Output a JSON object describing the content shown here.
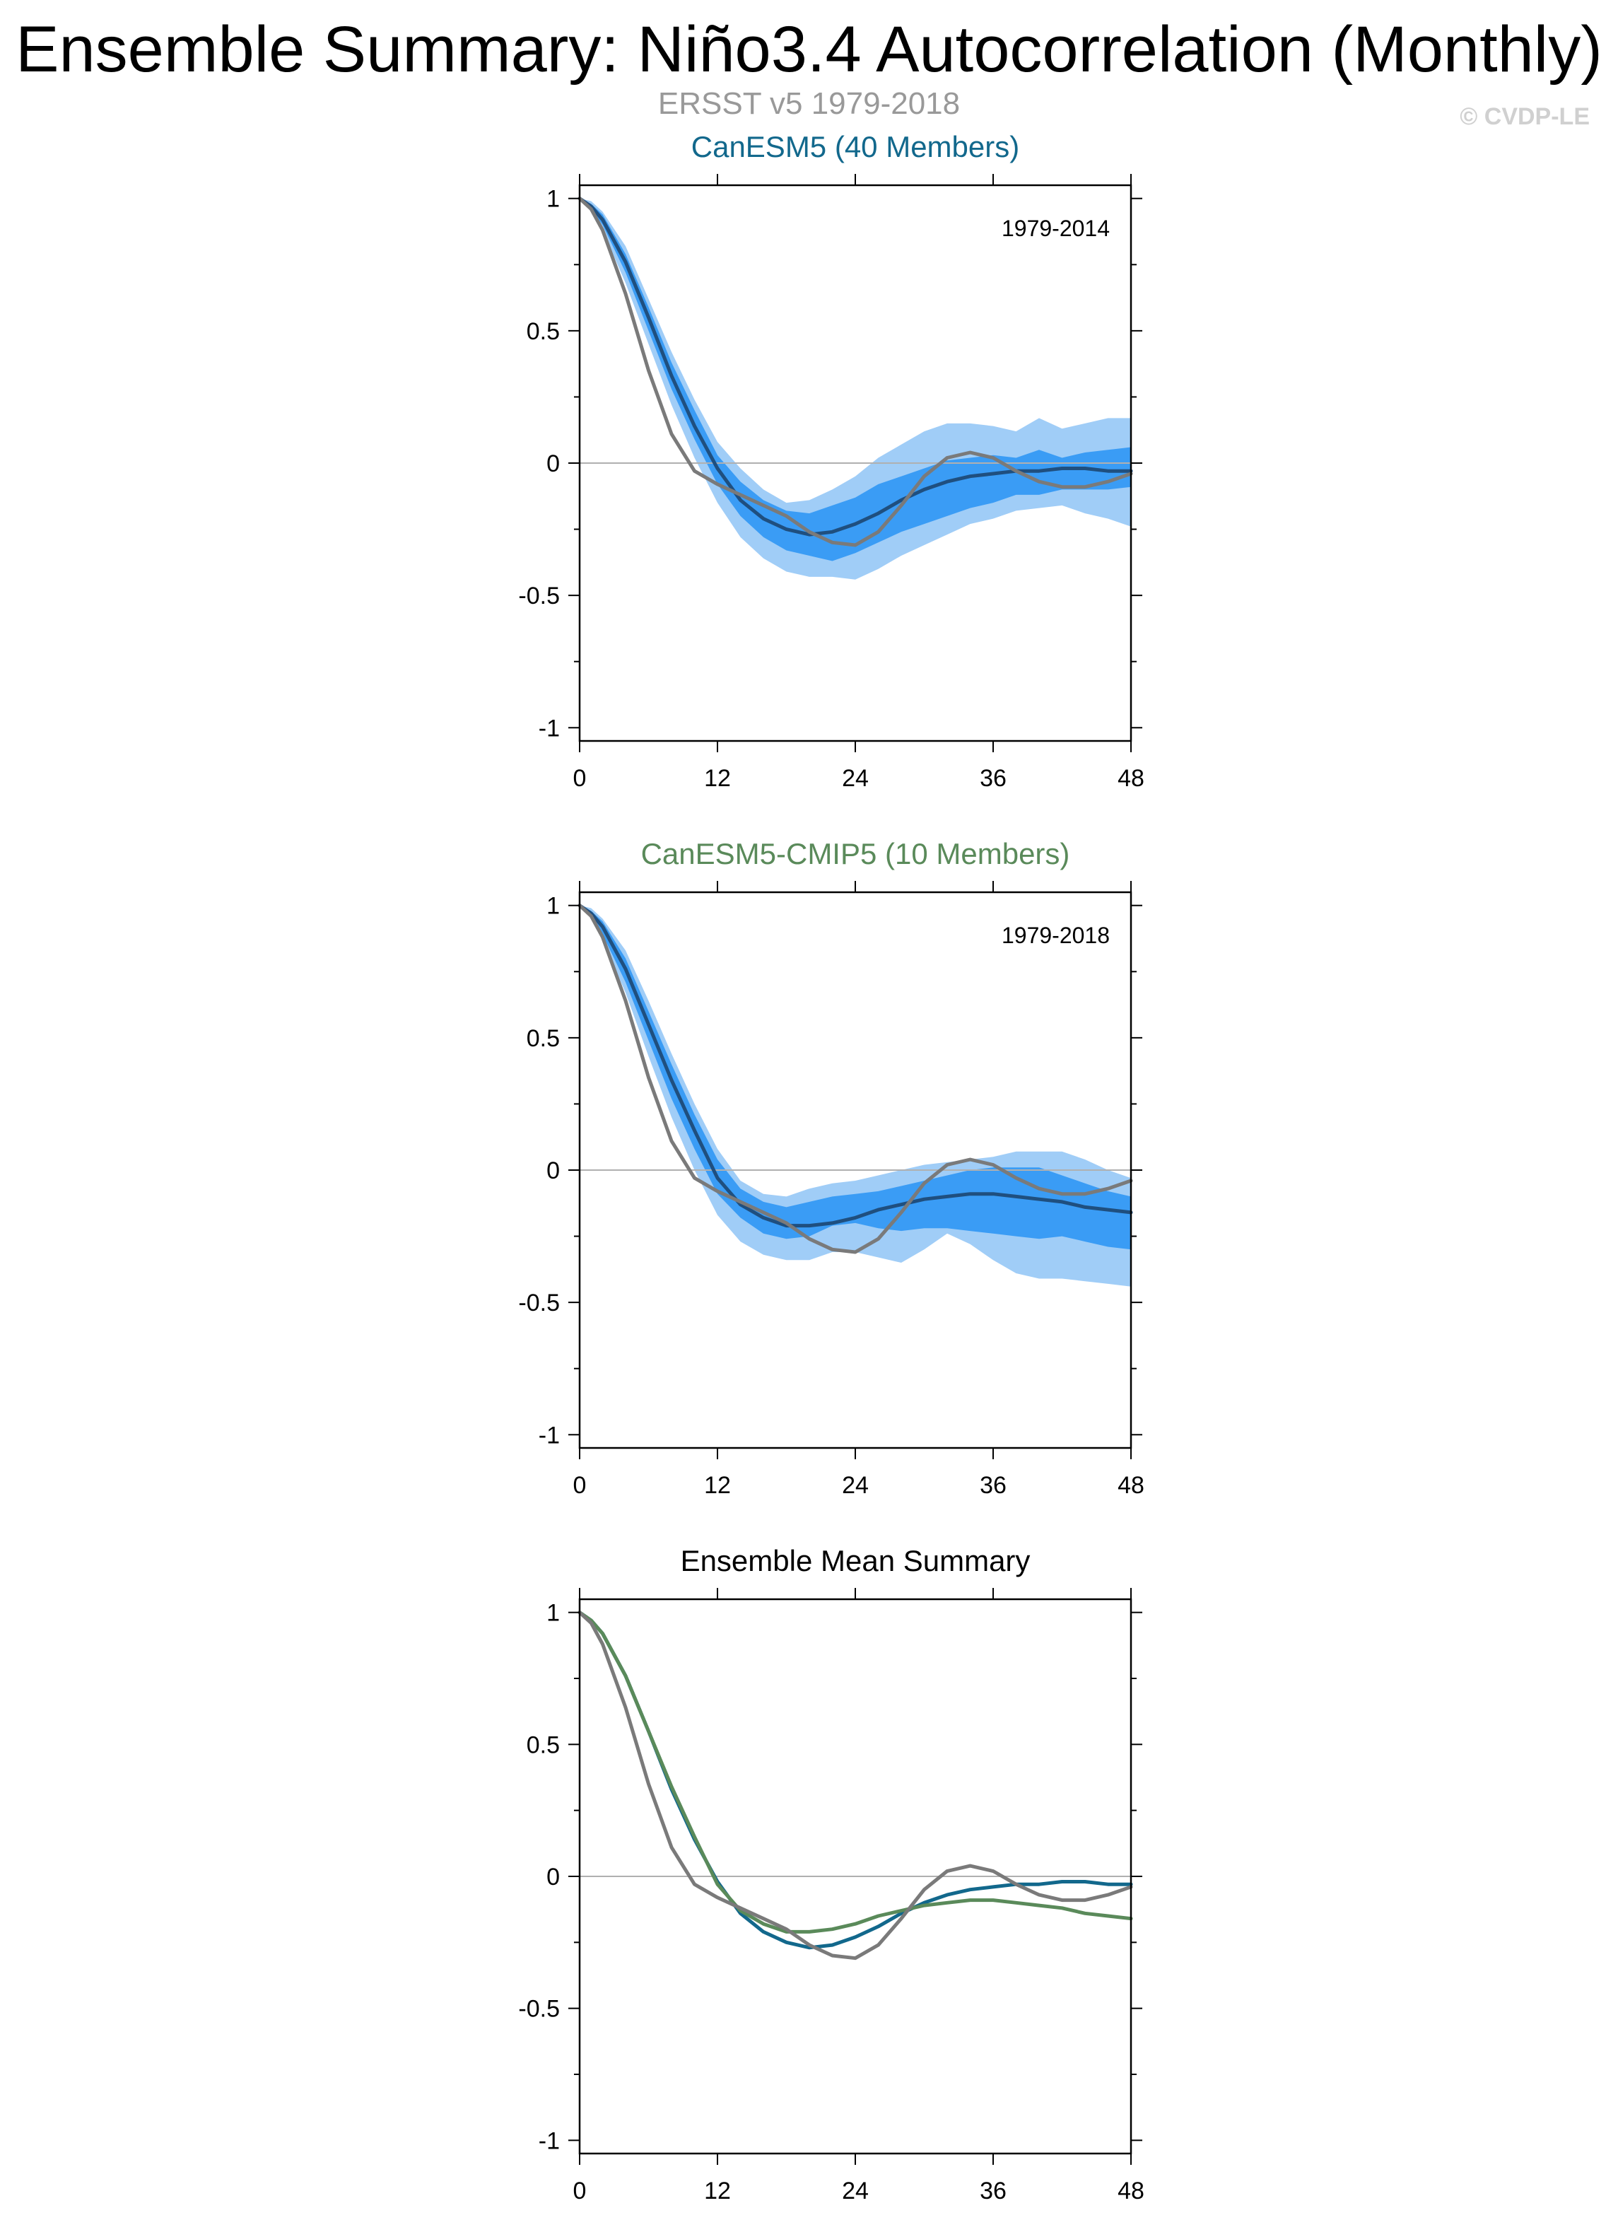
{
  "figure": {
    "title": "Ensemble Summary: Niño3.4 Autocorrelation (Monthly)",
    "subtitle": "ERSST v5 1979-2018",
    "copyright": "© CVDP-LE"
  },
  "colors": {
    "obs": "#7a7a7a",
    "band_outer": "#a0cdf7",
    "band_inner": "#3a9cf5",
    "ens_mean_line": "#1f4f7f",
    "canesm5": "#12688c",
    "canesm5_cmip5": "#5a8a5a",
    "zero_line": "#b0b0b0"
  },
  "chart_data": [
    {
      "type": "line",
      "title": "CanESM5 (40 Members)",
      "title_color": "#12688c",
      "period_label": "1979-2014",
      "x_ticks": [
        0,
        12,
        24,
        36,
        48
      ],
      "y_ticks": [
        1,
        0.5,
        0,
        -0.5,
        -1
      ],
      "y_tick_labels": [
        "1",
        "0.5",
        "0",
        "-0.5",
        "-1"
      ],
      "xlim": [
        0,
        48
      ],
      "ylim": [
        -1.05,
        1.05
      ],
      "x": [
        0,
        1,
        2,
        4,
        6,
        8,
        10,
        12,
        14,
        16,
        18,
        20,
        22,
        24,
        26,
        28,
        30,
        32,
        34,
        36,
        38,
        40,
        42,
        44,
        46,
        48
      ],
      "band_outer_upper": [
        1,
        0.99,
        0.95,
        0.82,
        0.62,
        0.42,
        0.24,
        0.08,
        -0.02,
        -0.1,
        -0.15,
        -0.14,
        -0.1,
        -0.05,
        0.02,
        0.07,
        0.12,
        0.15,
        0.15,
        0.14,
        0.12,
        0.17,
        0.13,
        0.15,
        0.17,
        0.17
      ],
      "band_inner_upper": [
        1,
        0.98,
        0.94,
        0.79,
        0.59,
        0.38,
        0.2,
        0.03,
        -0.07,
        -0.14,
        -0.18,
        -0.19,
        -0.16,
        -0.13,
        -0.08,
        -0.05,
        -0.02,
        0.01,
        0.02,
        0.03,
        0.02,
        0.05,
        0.02,
        0.04,
        0.05,
        0.06
      ],
      "band_inner_lower": [
        1,
        0.96,
        0.9,
        0.72,
        0.5,
        0.28,
        0.09,
        -0.08,
        -0.2,
        -0.28,
        -0.33,
        -0.35,
        -0.37,
        -0.34,
        -0.3,
        -0.26,
        -0.23,
        -0.2,
        -0.17,
        -0.15,
        -0.12,
        -0.12,
        -0.1,
        -0.1,
        -0.1,
        -0.09
      ],
      "band_outer_lower": [
        1,
        0.95,
        0.88,
        0.68,
        0.45,
        0.22,
        0.02,
        -0.15,
        -0.28,
        -0.36,
        -0.41,
        -0.43,
        -0.43,
        -0.44,
        -0.4,
        -0.35,
        -0.31,
        -0.27,
        -0.23,
        -0.21,
        -0.18,
        -0.17,
        -0.16,
        -0.19,
        -0.21,
        -0.24
      ],
      "series": [
        {
          "name": "Ensemble Mean",
          "color": "#1f4f7f",
          "values": [
            1,
            0.97,
            0.92,
            0.76,
            0.55,
            0.33,
            0.14,
            -0.02,
            -0.14,
            -0.21,
            -0.25,
            -0.27,
            -0.26,
            -0.23,
            -0.19,
            -0.14,
            -0.1,
            -0.07,
            -0.05,
            -0.04,
            -0.03,
            -0.03,
            -0.02,
            -0.02,
            -0.03,
            -0.03
          ]
        },
        {
          "name": "ERSST v5",
          "color": "#7a7a7a",
          "values": [
            1,
            0.96,
            0.88,
            0.64,
            0.35,
            0.11,
            -0.03,
            -0.08,
            -0.12,
            -0.16,
            -0.2,
            -0.26,
            -0.3,
            -0.31,
            -0.26,
            -0.16,
            -0.05,
            0.02,
            0.04,
            0.02,
            -0.03,
            -0.07,
            -0.09,
            -0.09,
            -0.07,
            -0.04
          ]
        }
      ]
    },
    {
      "type": "line",
      "title": "CanESM5-CMIP5 (10 Members)",
      "title_color": "#5a8a5a",
      "period_label": "1979-2018",
      "x_ticks": [
        0,
        12,
        24,
        36,
        48
      ],
      "y_ticks": [
        1,
        0.5,
        0,
        -0.5,
        -1
      ],
      "y_tick_labels": [
        "1",
        "0.5",
        "0",
        "-0.5",
        "-1"
      ],
      "xlim": [
        0,
        48
      ],
      "ylim": [
        -1.05,
        1.05
      ],
      "x": [
        0,
        1,
        2,
        4,
        6,
        8,
        10,
        12,
        14,
        16,
        18,
        20,
        22,
        24,
        26,
        28,
        30,
        32,
        34,
        36,
        38,
        40,
        42,
        44,
        46,
        48
      ],
      "band_outer_upper": [
        1,
        0.99,
        0.95,
        0.83,
        0.64,
        0.44,
        0.25,
        0.08,
        -0.04,
        -0.09,
        -0.1,
        -0.07,
        -0.05,
        -0.04,
        -0.02,
        0.0,
        0.02,
        0.03,
        0.04,
        0.05,
        0.07,
        0.07,
        0.07,
        0.04,
        0.0,
        -0.03
      ],
      "band_inner_upper": [
        1,
        0.98,
        0.94,
        0.8,
        0.6,
        0.4,
        0.21,
        0.04,
        -0.07,
        -0.12,
        -0.14,
        -0.12,
        -0.1,
        -0.09,
        -0.08,
        -0.06,
        -0.04,
        -0.02,
        0.0,
        0.01,
        0.01,
        0.01,
        -0.02,
        -0.05,
        -0.08,
        -0.1
      ],
      "band_inner_lower": [
        1,
        0.96,
        0.89,
        0.71,
        0.49,
        0.27,
        0.08,
        -0.09,
        -0.18,
        -0.24,
        -0.26,
        -0.25,
        -0.21,
        -0.2,
        -0.22,
        -0.23,
        -0.22,
        -0.22,
        -0.23,
        -0.24,
        -0.25,
        -0.26,
        -0.25,
        -0.27,
        -0.29,
        -0.3
      ],
      "band_outer_lower": [
        1,
        0.95,
        0.87,
        0.67,
        0.43,
        0.2,
        0.0,
        -0.17,
        -0.27,
        -0.32,
        -0.34,
        -0.34,
        -0.31,
        -0.31,
        -0.33,
        -0.35,
        -0.3,
        -0.24,
        -0.28,
        -0.34,
        -0.39,
        -0.41,
        -0.41,
        -0.42,
        -0.43,
        -0.44
      ],
      "series": [
        {
          "name": "Ensemble Mean",
          "color": "#1f4f7f",
          "values": [
            1,
            0.97,
            0.92,
            0.76,
            0.55,
            0.34,
            0.15,
            -0.03,
            -0.13,
            -0.18,
            -0.21,
            -0.21,
            -0.2,
            -0.18,
            -0.15,
            -0.13,
            -0.11,
            -0.1,
            -0.09,
            -0.09,
            -0.1,
            -0.11,
            -0.12,
            -0.14,
            -0.15,
            -0.16
          ]
        },
        {
          "name": "ERSST v5",
          "color": "#7a7a7a",
          "values": [
            1,
            0.96,
            0.88,
            0.64,
            0.35,
            0.11,
            -0.03,
            -0.08,
            -0.12,
            -0.16,
            -0.2,
            -0.26,
            -0.3,
            -0.31,
            -0.26,
            -0.16,
            -0.05,
            0.02,
            0.04,
            0.02,
            -0.03,
            -0.07,
            -0.09,
            -0.09,
            -0.07,
            -0.04
          ]
        }
      ]
    },
    {
      "type": "line",
      "title": "Ensemble Mean Summary",
      "title_color": "#000000",
      "period_label": "",
      "x_ticks": [
        0,
        12,
        24,
        36,
        48
      ],
      "y_ticks": [
        1,
        0.5,
        0,
        -0.5,
        -1
      ],
      "y_tick_labels": [
        "1",
        "0.5",
        "0",
        "-0.5",
        "-1"
      ],
      "xlim": [
        0,
        48
      ],
      "ylim": [
        -1.05,
        1.05
      ],
      "x": [
        0,
        1,
        2,
        4,
        6,
        8,
        10,
        12,
        14,
        16,
        18,
        20,
        22,
        24,
        26,
        28,
        30,
        32,
        34,
        36,
        38,
        40,
        42,
        44,
        46,
        48
      ],
      "series": [
        {
          "name": "CanESM5",
          "color": "#12688c",
          "values": [
            1,
            0.97,
            0.92,
            0.76,
            0.55,
            0.33,
            0.14,
            -0.02,
            -0.14,
            -0.21,
            -0.25,
            -0.27,
            -0.26,
            -0.23,
            -0.19,
            -0.14,
            -0.1,
            -0.07,
            -0.05,
            -0.04,
            -0.03,
            -0.03,
            -0.02,
            -0.02,
            -0.03,
            -0.03
          ]
        },
        {
          "name": "CanESM5-CMIP5",
          "color": "#5a8a5a",
          "values": [
            1,
            0.97,
            0.92,
            0.76,
            0.55,
            0.34,
            0.15,
            -0.03,
            -0.13,
            -0.18,
            -0.21,
            -0.21,
            -0.2,
            -0.18,
            -0.15,
            -0.13,
            -0.11,
            -0.1,
            -0.09,
            -0.09,
            -0.1,
            -0.11,
            -0.12,
            -0.14,
            -0.15,
            -0.16
          ]
        },
        {
          "name": "ERSST v5",
          "color": "#7a7a7a",
          "values": [
            1,
            0.96,
            0.88,
            0.64,
            0.35,
            0.11,
            -0.03,
            -0.08,
            -0.12,
            -0.16,
            -0.2,
            -0.26,
            -0.3,
            -0.31,
            -0.26,
            -0.16,
            -0.05,
            0.02,
            0.04,
            0.02,
            -0.03,
            -0.07,
            -0.09,
            -0.09,
            -0.07,
            -0.04
          ]
        }
      ]
    }
  ]
}
